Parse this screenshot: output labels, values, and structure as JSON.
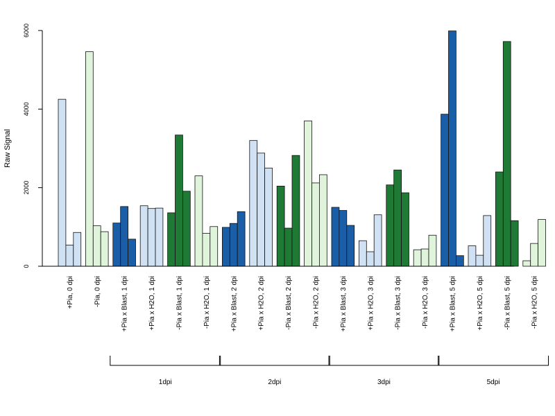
{
  "chart_data": {
    "type": "bar",
    "ylabel": "Raw Signal",
    "xlabel": "",
    "title": "",
    "ylim": [
      0,
      6000
    ],
    "yticks": [
      0,
      2000,
      4000,
      6000
    ],
    "grid": false,
    "legend": "none",
    "colors": {
      "light_blue": "#d0e1f4",
      "dark_blue": "#1a5ea8",
      "light_green": "#e0f3db",
      "dark_green": "#1f7a36"
    },
    "categories": [
      {
        "label": "+Pia, 0 dpi",
        "color": "light_blue",
        "values": [
          4250,
          540,
          860
        ]
      },
      {
        "label": "-Pia, 0 dpi",
        "color": "light_green",
        "values": [
          5460,
          1030,
          880
        ]
      },
      {
        "label": "+Pia x Blast, 1 dpi",
        "color": "dark_blue",
        "values": [
          1100,
          1520,
          690
        ]
      },
      {
        "label": "+Pia x H2O, 1 dpi",
        "color": "light_blue",
        "values": [
          1540,
          1470,
          1480
        ]
      },
      {
        "label": "-Pia x Blast, 1 dpi",
        "color": "dark_green",
        "values": [
          1360,
          3340,
          1910
        ]
      },
      {
        "label": "-Pia x H2O, 1 dpi",
        "color": "light_green",
        "values": [
          2300,
          840,
          1010
        ]
      },
      {
        "label": "+Pia x Blast, 2 dpi",
        "color": "dark_blue",
        "values": [
          990,
          1090,
          1390
        ]
      },
      {
        "label": "+Pia x H2O, 2 dpi",
        "color": "light_blue",
        "values": [
          3200,
          2880,
          2500
        ]
      },
      {
        "label": "-Pia x Blast, 2 dpi",
        "color": "dark_green",
        "values": [
          2040,
          970,
          2820
        ]
      },
      {
        "label": "-Pia x H2O, 2 dpi",
        "color": "light_green",
        "values": [
          3700,
          2120,
          2330
        ]
      },
      {
        "label": "+Pia x Blast, 3 dpi",
        "color": "dark_blue",
        "values": [
          1500,
          1420,
          1040
        ]
      },
      {
        "label": "+Pia x H2O, 3 dpi",
        "color": "light_blue",
        "values": [
          650,
          370,
          1310
        ]
      },
      {
        "label": "-Pia x Blast, 3 dpi",
        "color": "dark_green",
        "values": [
          2070,
          2450,
          1870
        ]
      },
      {
        "label": "-Pia x H2O, 3 dpi",
        "color": "light_green",
        "values": [
          420,
          440,
          790
        ]
      },
      {
        "label": "+Pia x Blast, 5 dpi",
        "color": "dark_blue",
        "values": [
          3870,
          5990,
          270
        ]
      },
      {
        "label": "+Pia x H2O, 5 dpi",
        "color": "light_blue",
        "values": [
          520,
          280,
          1290
        ]
      },
      {
        "label": "-Pia x Blast, 5 dpi",
        "color": "dark_green",
        "values": [
          2400,
          5720,
          1160
        ]
      },
      {
        "label": "-Pia x H2O, 5 dpi",
        "color": "light_green",
        "values": [
          140,
          580,
          1190
        ]
      }
    ],
    "groups": [
      {
        "label": "1dpi",
        "first": 2,
        "last": 5
      },
      {
        "label": "2dpi",
        "first": 6,
        "last": 9
      },
      {
        "label": "3dpi",
        "first": 10,
        "last": 13
      },
      {
        "label": "5dpi",
        "first": 14,
        "last": 17
      }
    ]
  }
}
